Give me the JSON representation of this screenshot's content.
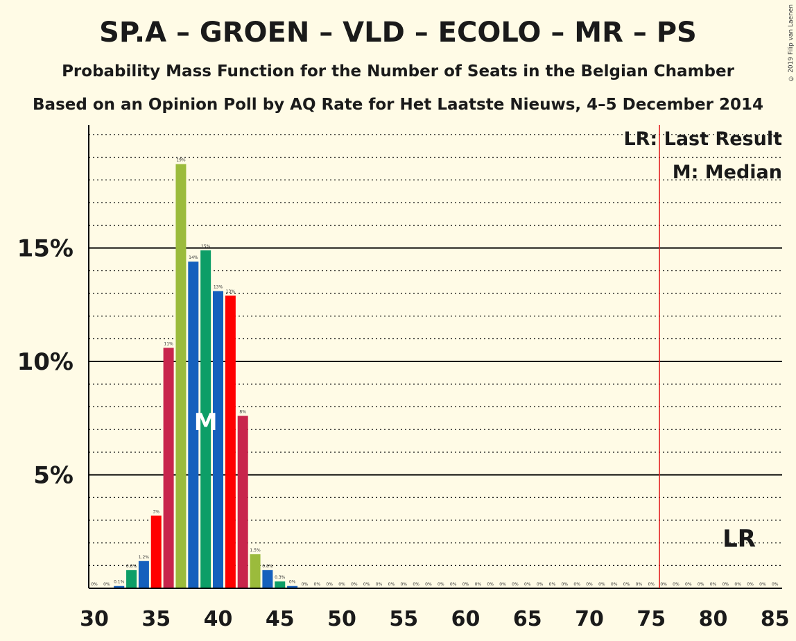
{
  "title": "SP.A – GROEN – VLD – ECOLO – MR – PS",
  "subtitle": "Probability Mass Function for the Number of Seats in the Belgian Chamber",
  "subtitle2": "Based on an Opinion Poll by AQ Rate for Het Laatste Nieuws, 4–5 December 2014",
  "copyright": "© 2019 Filip van Laenen",
  "legend": {
    "last_result": "LR: Last Result",
    "median": "M: Median"
  },
  "markers": {
    "lr": "LR",
    "median": "M"
  },
  "colors": {
    "background": "#fffbe6",
    "lr_line": "#e31a1c",
    "palette": [
      "#c8254c",
      "#9bbb3c",
      "#1560bd",
      "#0d9e67",
      "#1560bd",
      "#ff0000"
    ]
  },
  "chart_data": {
    "type": "bar",
    "xlim": [
      30,
      85
    ],
    "ylim": [
      0,
      20
    ],
    "y_ticks": [
      5,
      10,
      15
    ],
    "y_tick_labels": [
      "5%",
      "10%",
      "15%"
    ],
    "x_ticks": [
      30,
      35,
      40,
      45,
      50,
      55,
      60,
      65,
      70,
      75,
      80,
      85
    ],
    "x_tick_labels": [
      "30",
      "35",
      "40",
      "45",
      "50",
      "55",
      "60",
      "65",
      "70",
      "75",
      "80",
      "85"
    ],
    "grid": true,
    "legend_position": "top-right",
    "last_result": 76,
    "median": 39,
    "seats": [
      30,
      31,
      32,
      33,
      34,
      35,
      36,
      37,
      38,
      39,
      40,
      41,
      42,
      43,
      44,
      45,
      46,
      47,
      48,
      49,
      50,
      51,
      52,
      53,
      54,
      55,
      56,
      57,
      58,
      59,
      60,
      61,
      62,
      63,
      64,
      65,
      66,
      67,
      68,
      69,
      70,
      71,
      72,
      73,
      74,
      75,
      76,
      77,
      78,
      79,
      80,
      81,
      82,
      83,
      84,
      85
    ],
    "values": [
      0,
      0,
      0.1,
      0.8,
      1.2,
      3.2,
      10.6,
      18.7,
      14.4,
      14.9,
      13.1,
      12.9,
      7.6,
      1.5,
      0.8,
      0.3,
      0.1,
      0,
      0,
      0,
      0,
      0,
      0,
      0,
      0,
      0,
      0,
      0,
      0,
      0,
      0,
      0,
      0,
      0,
      0,
      0,
      0,
      0,
      0,
      0,
      0,
      0,
      0,
      0,
      0,
      0,
      0,
      0,
      0,
      0,
      0,
      0,
      0,
      0,
      0,
      0
    ],
    "labels": [
      "0%",
      "0%",
      "0.1%",
      "0.8%",
      "1.2%",
      "3%",
      "11%",
      "19%",
      "14%",
      "15%",
      "13%",
      "13%",
      "8%",
      "1.5%",
      "0.8%",
      "0.3%",
      "0%",
      "0%",
      "0%",
      "0%",
      "0%",
      "0%",
      "0%",
      "0%",
      "0%",
      "0%",
      "0%",
      "0%",
      "0%",
      "0%",
      "0%",
      "0%",
      "0%",
      "0%",
      "0%",
      "0%",
      "0%",
      "0%",
      "0%",
      "0%",
      "0%",
      "0%",
      "0%",
      "0%",
      "0%",
      "0%",
      "0%",
      "0%",
      "0%",
      "0%",
      "0%",
      "0%",
      "0%",
      "0%",
      "0%",
      "0%"
    ]
  }
}
